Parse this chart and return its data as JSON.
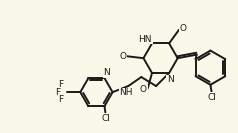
{
  "bg_color": "#faf8e8",
  "line_color": "#1a1a1a",
  "line_width": 1.4,
  "figsize": [
    2.38,
    1.33
  ],
  "dpi": 100,
  "xlim": [
    0,
    10
  ],
  "ylim": [
    0,
    5.6
  ]
}
